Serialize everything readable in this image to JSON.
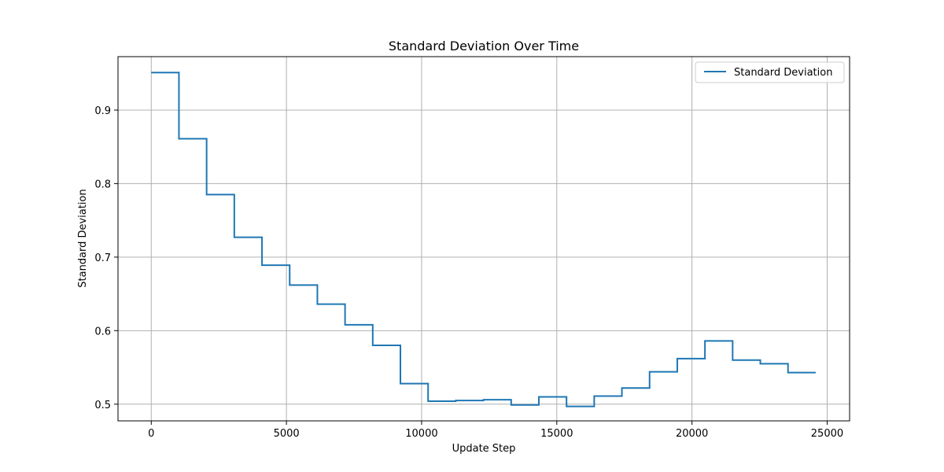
{
  "chart_data": {
    "type": "line",
    "step_style": "post",
    "title": "Standard Deviation Over Time",
    "xlabel": "Update Step",
    "ylabel": "Standard Deviation",
    "xlim": [
      -1230,
      25830
    ],
    "ylim": [
      0.4773,
      0.9727
    ],
    "x_ticks": [
      0,
      5000,
      10000,
      15000,
      20000,
      25000
    ],
    "x_tick_labels": [
      "0",
      "5000",
      "10000",
      "15000",
      "20000",
      "25000"
    ],
    "y_ticks": [
      0.5,
      0.6,
      0.7,
      0.8,
      0.9
    ],
    "y_tick_labels": [
      "0.5",
      "0.6",
      "0.7",
      "0.8",
      "0.9"
    ],
    "grid": true,
    "legend_position": "upper right",
    "series": [
      {
        "name": "Standard Deviation",
        "color": "#1f77b4",
        "x": [
          0,
          1024,
          2048,
          3072,
          4096,
          5120,
          6144,
          7168,
          8192,
          9216,
          10240,
          11264,
          12288,
          13312,
          14336,
          15360,
          16384,
          17408,
          18432,
          19456,
          20480,
          21504,
          22528,
          23552,
          24576
        ],
        "y": [
          0.951,
          0.861,
          0.785,
          0.727,
          0.689,
          0.662,
          0.636,
          0.608,
          0.58,
          0.528,
          0.504,
          0.505,
          0.506,
          0.499,
          0.51,
          0.497,
          0.511,
          0.522,
          0.544,
          0.562,
          0.586,
          0.56,
          0.555,
          0.543,
          0.543
        ]
      }
    ]
  }
}
